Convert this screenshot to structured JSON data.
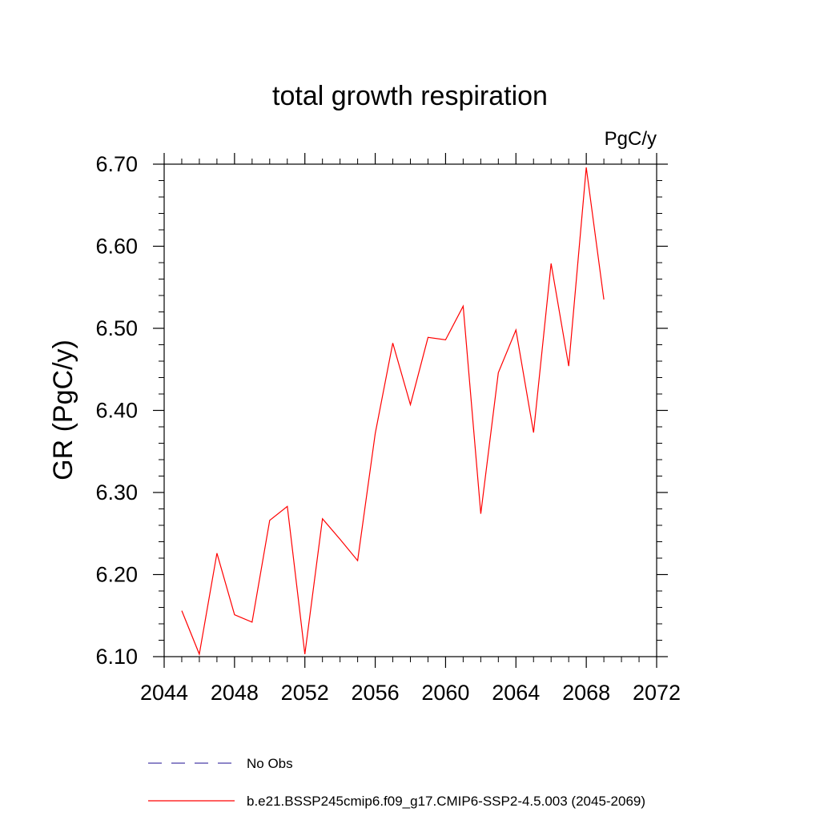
{
  "chart_data": {
    "type": "line",
    "title": "total growth respiration",
    "units_label": "PgC/y",
    "ylabel": "GR  (PgC/y)",
    "xlabel": "",
    "xlim": [
      2044,
      2072
    ],
    "ylim": [
      6.1,
      6.7
    ],
    "x_ticks": [
      2044,
      2048,
      2052,
      2056,
      2060,
      2064,
      2068,
      2072
    ],
    "x_tick_labels": [
      "2044",
      "2048",
      "2052",
      "2056",
      "2060",
      "2064",
      "2068",
      "2072"
    ],
    "y_ticks": [
      6.1,
      6.2,
      6.3,
      6.4,
      6.5,
      6.6,
      6.7
    ],
    "y_tick_labels": [
      "6.10",
      "6.20",
      "6.30",
      "6.40",
      "6.50",
      "6.60",
      "6.70"
    ],
    "grid": false,
    "legend_position": "bottom",
    "series": [
      {
        "name": "b.e21.BSSP245cmip6.f09_g17.CMIP6-SSP2-4.5.003 (2045-2069)",
        "color": "#ff0000",
        "style": "solid",
        "x": [
          2045,
          2046,
          2047,
          2048,
          2049,
          2050,
          2051,
          2052,
          2053,
          2054,
          2055,
          2056,
          2057,
          2058,
          2059,
          2060,
          2061,
          2062,
          2063,
          2064,
          2065,
          2066,
          2067,
          2068,
          2069
        ],
        "y": [
          6.156,
          6.103,
          6.226,
          6.151,
          6.142,
          6.266,
          6.283,
          6.103,
          6.268,
          6.243,
          6.217,
          6.372,
          6.482,
          6.407,
          6.489,
          6.486,
          6.527,
          6.274,
          6.446,
          6.498,
          6.373,
          6.579,
          6.454,
          6.696,
          6.535
        ]
      }
    ],
    "legend": [
      {
        "label": "No Obs",
        "color": "#4b3fa8",
        "style": "dashed"
      },
      {
        "label": "b.e21.BSSP245cmip6.f09_g17.CMIP6-SSP2-4.5.003 (2045-2069)",
        "color": "#ff0000",
        "style": "solid"
      }
    ]
  }
}
